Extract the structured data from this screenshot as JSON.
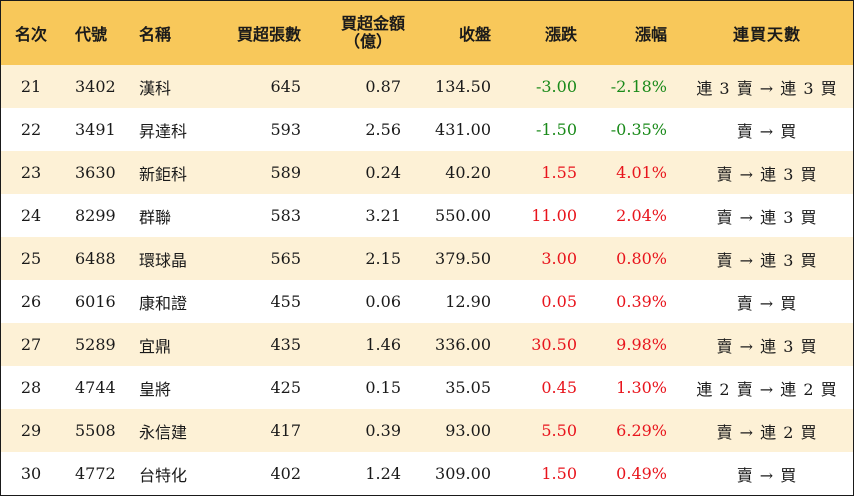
{
  "headers": {
    "rank": "名次",
    "code": "代號",
    "name": "名稱",
    "volume": "買超張數",
    "amount_line1": "買超金額",
    "amount_line2": "（億）",
    "close": "收盤",
    "change": "漲跌",
    "change_pct": "漲幅",
    "days": "連買天數"
  },
  "colors": {
    "header_bg": "#f8c85a",
    "stripe_bg": "#fdf1d6",
    "up": "#e8141c",
    "down": "#1a8a1a"
  },
  "rows": [
    {
      "rank": "21",
      "code": "3402",
      "name": "漢科",
      "volume": "645",
      "amount": "0.87",
      "close": "134.50",
      "change": "-3.00",
      "change_pct": "-2.18%",
      "days": "連 3 賣 → 連 3 買",
      "direction": "down"
    },
    {
      "rank": "22",
      "code": "3491",
      "name": "昇達科",
      "volume": "593",
      "amount": "2.56",
      "close": "431.00",
      "change": "-1.50",
      "change_pct": "-0.35%",
      "days": "賣 → 買",
      "direction": "down"
    },
    {
      "rank": "23",
      "code": "3630",
      "name": "新鉅科",
      "volume": "589",
      "amount": "0.24",
      "close": "40.20",
      "change": "1.55",
      "change_pct": "4.01%",
      "days": "賣 → 連 3 買",
      "direction": "up"
    },
    {
      "rank": "24",
      "code": "8299",
      "name": "群聯",
      "volume": "583",
      "amount": "3.21",
      "close": "550.00",
      "change": "11.00",
      "change_pct": "2.04%",
      "days": "賣 → 連 3 買",
      "direction": "up"
    },
    {
      "rank": "25",
      "code": "6488",
      "name": "環球晶",
      "volume": "565",
      "amount": "2.15",
      "close": "379.50",
      "change": "3.00",
      "change_pct": "0.80%",
      "days": "賣 → 連 3 買",
      "direction": "up"
    },
    {
      "rank": "26",
      "code": "6016",
      "name": "康和證",
      "volume": "455",
      "amount": "0.06",
      "close": "12.90",
      "change": "0.05",
      "change_pct": "0.39%",
      "days": "賣 → 買",
      "direction": "up"
    },
    {
      "rank": "27",
      "code": "5289",
      "name": "宜鼎",
      "volume": "435",
      "amount": "1.46",
      "close": "336.00",
      "change": "30.50",
      "change_pct": "9.98%",
      "days": "賣 → 連 3 買",
      "direction": "up"
    },
    {
      "rank": "28",
      "code": "4744",
      "name": "皇將",
      "volume": "425",
      "amount": "0.15",
      "close": "35.05",
      "change": "0.45",
      "change_pct": "1.30%",
      "days": "連 2 賣 → 連 2 買",
      "direction": "up"
    },
    {
      "rank": "29",
      "code": "5508",
      "name": "永信建",
      "volume": "417",
      "amount": "0.39",
      "close": "93.00",
      "change": "5.50",
      "change_pct": "6.29%",
      "days": "賣 → 連 2 買",
      "direction": "up"
    },
    {
      "rank": "30",
      "code": "4772",
      "name": "台特化",
      "volume": "402",
      "amount": "1.24",
      "close": "309.00",
      "change": "1.50",
      "change_pct": "0.49%",
      "days": "賣 → 買",
      "direction": "up"
    }
  ]
}
